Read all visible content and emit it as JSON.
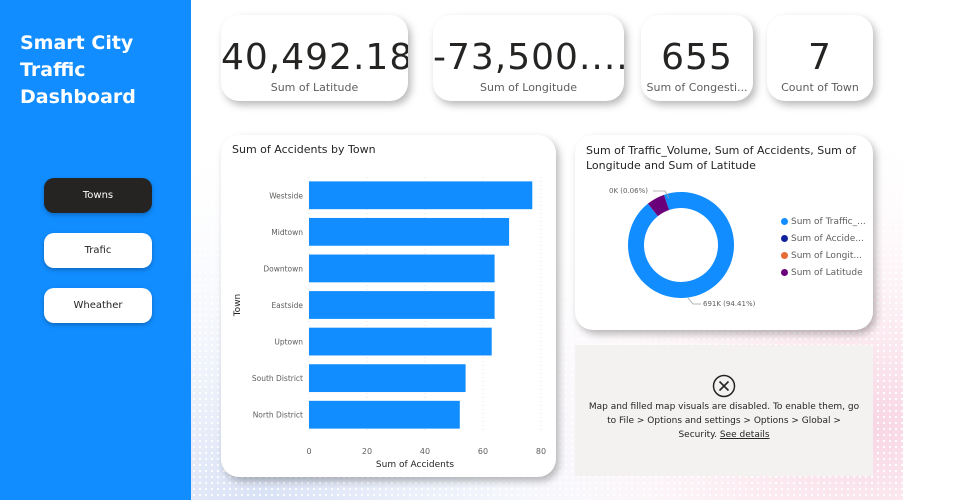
{
  "sidebar": {
    "title_lines": [
      "Smart City",
      "Traffic",
      "Dashboard"
    ],
    "nav": [
      {
        "label": "Towns",
        "active": true
      },
      {
        "label": "Trafic",
        "active": false
      },
      {
        "label": "Wheather",
        "active": false
      }
    ],
    "background": "#118dff"
  },
  "kpis": [
    {
      "value": "40,492.18",
      "label": "Sum of Latitude"
    },
    {
      "value": "-73,500....",
      "label": "Sum of Longitude"
    },
    {
      "value": "655",
      "label": "Sum of Congesti..."
    },
    {
      "value": "7",
      "label": "Count of Town"
    }
  ],
  "bar_chart": {
    "title": "Sum of Accidents by Town"
  },
  "donut_chart": {
    "title": "Sum of Traffic_Volume, Sum of Accidents, Sum of Longitude and Sum of Latitude",
    "label_small": "0K (0.06%)",
    "label_large": "691K (94.41%)",
    "legend": [
      {
        "label": "Sum of Traffic_...",
        "color": "#118dff"
      },
      {
        "label": "Sum of Accide...",
        "color": "#12239e"
      },
      {
        "label": "Sum of Longit...",
        "color": "#e66c37"
      },
      {
        "label": "Sum of Latitude",
        "color": "#6b007b"
      }
    ]
  },
  "map_notice": {
    "message": "Map and filled map visuals are disabled. To enable them, go to File > Options and settings > Options > Global > Security.",
    "link_text": "See details",
    "icon": "close-circle-icon"
  },
  "chart_data": [
    {
      "type": "bar",
      "orientation": "horizontal",
      "title": "Sum of Accidents by Town",
      "xlabel": "Sum of Accidents",
      "ylabel": "Town",
      "categories": [
        "Westside",
        "Midtown",
        "Downtown",
        "Eastside",
        "Uptown",
        "South District",
        "North District"
      ],
      "values": [
        77,
        69,
        64,
        64,
        63,
        54,
        52
      ],
      "xlim": [
        0,
        80
      ],
      "xticks": [
        0,
        20,
        40,
        60,
        80
      ],
      "color": "#118dff",
      "grid": true
    },
    {
      "type": "pie",
      "variant": "donut",
      "title": "Sum of Traffic_Volume, Sum of Accidents, Sum of Longitude and Sum of Latitude",
      "labels": [
        "Sum of Traffic_...",
        "Sum of Accide...",
        "Sum of Longit...",
        "Sum of Latitude"
      ],
      "percent": [
        94.41,
        0.06,
        0.0,
        5.53
      ],
      "colors": [
        "#118dff",
        "#12239e",
        "#e66c37",
        "#6b007b"
      ],
      "legend": "right"
    }
  ]
}
